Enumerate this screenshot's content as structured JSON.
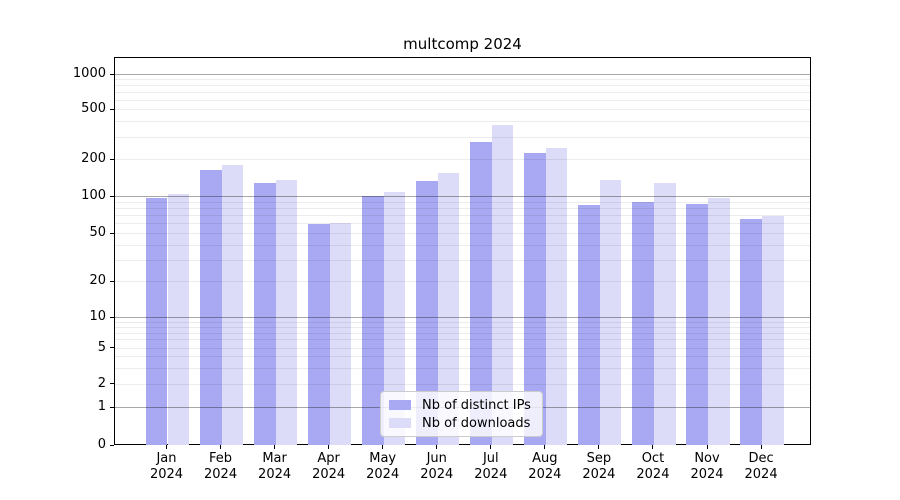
{
  "title": "multcomp 2024",
  "chart_data": {
    "type": "bar",
    "title": "multcomp 2024",
    "categories": [
      "Jan 2024",
      "Feb 2024",
      "Mar 2024",
      "Apr 2024",
      "May 2024",
      "Jun 2024",
      "Jul 2024",
      "Aug 2024",
      "Sep 2024",
      "Oct 2024",
      "Nov 2024",
      "Dec 2024"
    ],
    "series": [
      {
        "name": "Nb of distinct IPs",
        "color": "#a9a9f3",
        "values": [
          99,
          166,
          130,
          60,
          101,
          136,
          276,
          229,
          86,
          91,
          87,
          66
        ]
      },
      {
        "name": "Nb of downloads",
        "color": "#dcdcf8",
        "values": [
          106,
          183,
          137,
          62,
          109,
          158,
          380,
          247,
          137,
          130,
          99,
          70
        ]
      }
    ],
    "xlabel": "",
    "ylabel": "",
    "y_axis_type": "log-with-zero",
    "y_ticks": [
      0,
      1,
      2,
      5,
      10,
      20,
      50,
      100,
      200,
      500,
      1000
    ],
    "y_tick_labels": [
      "0",
      "1",
      "2",
      "5",
      "10",
      "20",
      "50",
      "100",
      "200",
      "500",
      "1000"
    ],
    "ylim": [
      0,
      1400
    ],
    "grid": "horizontal major+minor, drawn over translucent bars",
    "legend_position": "lower center inside plot",
    "bar_group": "two bars per month, distinct-IPs left, downloads right"
  }
}
